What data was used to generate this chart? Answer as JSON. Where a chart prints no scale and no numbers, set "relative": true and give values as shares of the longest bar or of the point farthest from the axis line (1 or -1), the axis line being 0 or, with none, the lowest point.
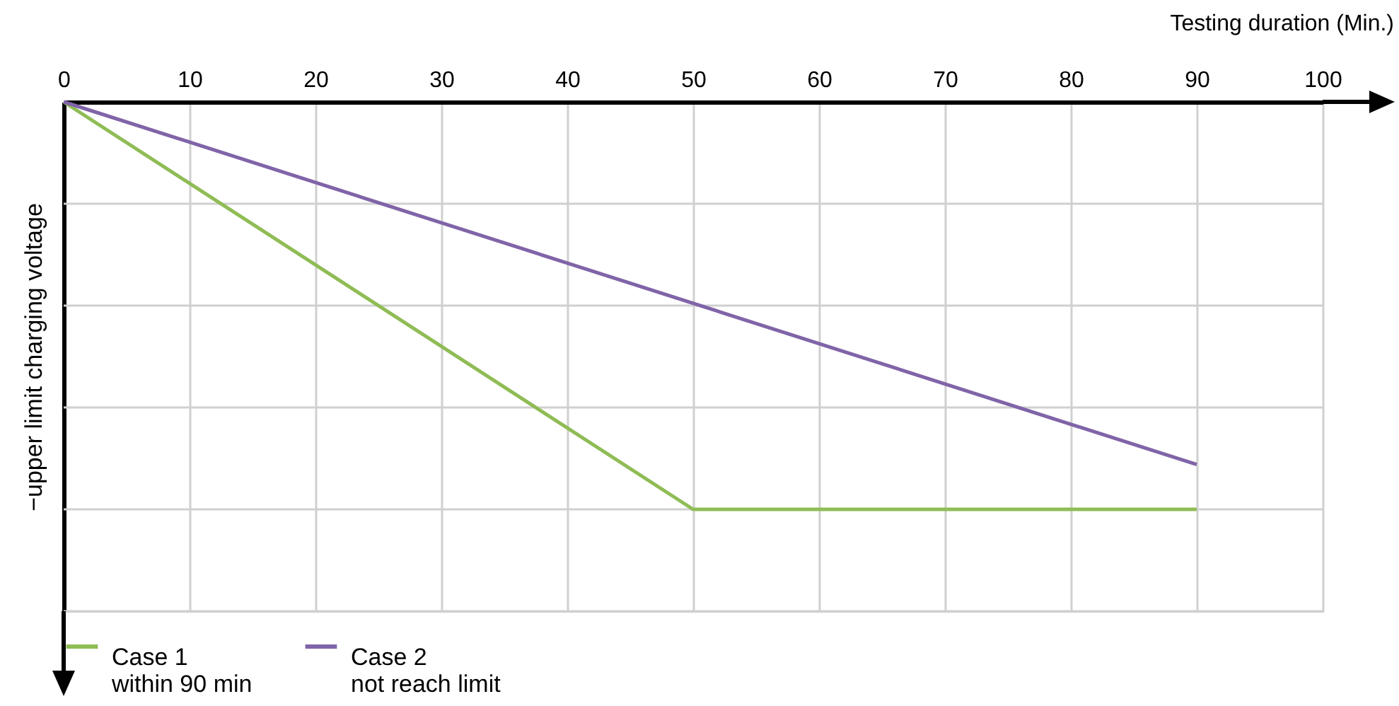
{
  "chart_data": {
    "type": "line",
    "relative": true,
    "xlabel": "Testing duration  (Min.)",
    "ylabel": "−upper limit charging voltage",
    "xlim": [
      0,
      100
    ],
    "xticks": [
      0,
      10,
      20,
      30,
      40,
      50,
      60,
      70,
      80,
      90,
      100
    ],
    "grid": true,
    "legend": "bottom",
    "series": [
      {
        "name": "Case 1\nwithin 90 min",
        "color": "#8fbc55",
        "x": [
          0,
          50,
          90
        ],
        "values": [
          0,
          -1,
          -1
        ]
      },
      {
        "name": "Case 2\nnot reach limit",
        "color": "#8064a8",
        "x": [
          0,
          90
        ],
        "values": [
          0,
          -0.89
        ]
      }
    ]
  }
}
